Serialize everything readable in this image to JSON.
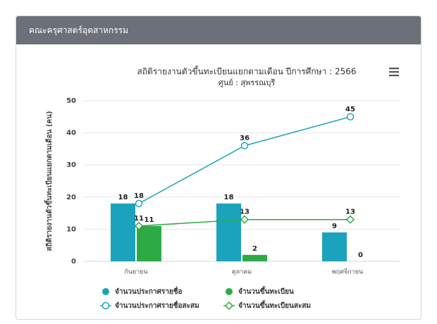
{
  "header": {
    "title": "คณะครุศาสตร์อุตสาหกรรม"
  },
  "chart_data": {
    "type": "bar",
    "title": "สถิติรายงานตัวขึ้นทะเบียนแยกตามเดือน ปีการศึกษา : 2566",
    "subtitle": "ศูนย์ : สุพรรณบุรี",
    "ylabel": "สถิติรายงานตัวขึ้นทะเบียนแยกตามเดือน (คน)",
    "categories": [
      "กันยายน",
      "ตุลาคม",
      "พฤศจิกายน"
    ],
    "series": [
      {
        "name": "จำนวนประกาศรายชื่อ",
        "type": "bar",
        "color": "#1ba3bd",
        "values": [
          18,
          18,
          9
        ]
      },
      {
        "name": "จำนวนขึ้นทะเบียน",
        "type": "bar",
        "color": "#2eaa45",
        "values": [
          11,
          2,
          0
        ]
      },
      {
        "name": "จำนวนประกาศรายชื่อสะสม",
        "type": "line",
        "marker": "circle",
        "color": "#1ba3bd",
        "values": [
          18,
          36,
          45
        ]
      },
      {
        "name": "จำนวนขึ้นทะเบียนสะสม",
        "type": "line",
        "marker": "diamond",
        "color": "#2eaa45",
        "values": [
          11,
          13,
          13
        ]
      }
    ],
    "ylim": [
      0,
      50
    ],
    "yticks": [
      0,
      10,
      20,
      30,
      40,
      50
    ],
    "grid": true
  }
}
